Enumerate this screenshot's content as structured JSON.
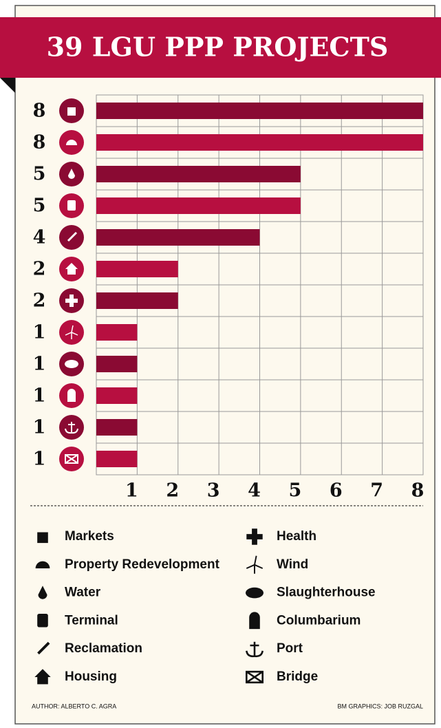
{
  "chart_data": {
    "type": "bar",
    "orientation": "horizontal",
    "title": "39 LGU PPP PROJECTS",
    "categories": [
      "Markets",
      "Property Redevelopment",
      "Water",
      "Terminal",
      "Reclamation",
      "Housing",
      "Health",
      "Wind",
      "Slaughterhouse",
      "Columbarium",
      "Port",
      "Bridge"
    ],
    "values": [
      8,
      8,
      5,
      5,
      4,
      2,
      2,
      1,
      1,
      1,
      1,
      1
    ],
    "colors": [
      "#8a0a33",
      "#b70f40",
      "#8a0a33",
      "#b70f40",
      "#8a0a33",
      "#b70f40",
      "#8a0a33",
      "#b70f40",
      "#8a0a33",
      "#b70f40",
      "#8a0a33",
      "#b70f40"
    ],
    "xlim": [
      0,
      8
    ],
    "xticks": [
      1,
      2,
      3,
      4,
      5,
      6,
      7,
      8
    ],
    "grid": true,
    "author": "AUTHOR: ALBERTO C. AGRA",
    "credit": "BM GRAPHICS: JOB RUZGAL"
  }
}
